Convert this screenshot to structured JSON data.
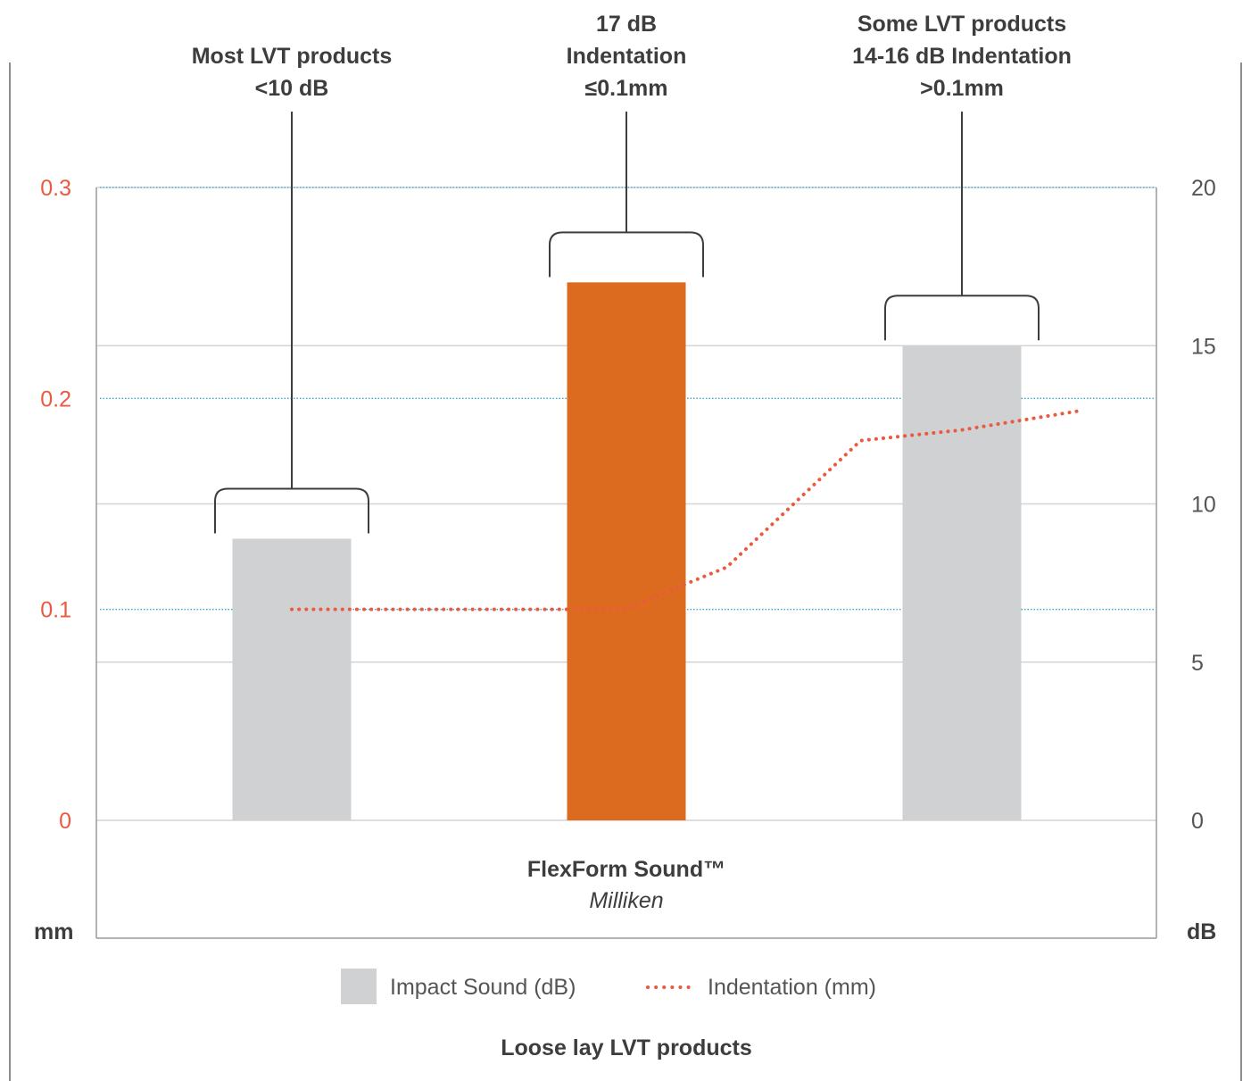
{
  "chart_data": {
    "type": "bar",
    "categories": [
      "",
      "FlexForm Sound™",
      ""
    ],
    "category_sub": [
      "",
      "Milliken",
      ""
    ],
    "series": [
      {
        "name": "Impact Sound (dB)",
        "values": [
          8.9,
          17,
          15
        ],
        "colors": [
          "#d0d1d2",
          "#dc6a1f",
          "#d0d1d2"
        ]
      },
      {
        "name": "Indentation (mm)",
        "type": "line",
        "style": "dotted",
        "color": "#ea5a3f",
        "x": [
          0,
          0.1,
          0.25,
          0.5,
          0.75,
          1.0,
          1.1,
          1.3,
          1.5,
          1.7,
          2.0,
          2.35
        ],
        "values": [
          0.1,
          0.1,
          0.1,
          0.1,
          0.1,
          0.1,
          0.107,
          0.12,
          0.15,
          0.18,
          0.185,
          0.194
        ]
      }
    ],
    "y_left": {
      "label": "mm",
      "ticks": [
        "0",
        "0.1",
        "0.2",
        "0.3"
      ],
      "lim": [
        0,
        0.3
      ],
      "color": "#ea5a3f"
    },
    "y_right": {
      "label": "dB",
      "ticks": [
        "0",
        "5",
        "10",
        "15",
        "20"
      ],
      "lim": [
        0,
        20
      ],
      "color": "#555555"
    },
    "annotations": [
      {
        "bar": 0,
        "lines": [
          "Most LVT products",
          "<10 dB"
        ]
      },
      {
        "bar": 1,
        "lines": [
          "17 dB",
          "Indentation",
          "≤0.1mm"
        ]
      },
      {
        "bar": 2,
        "lines": [
          "Some LVT products",
          "14-16 dB Indentation",
          ">0.1mm"
        ]
      }
    ],
    "legend": [
      {
        "label": "Impact Sound (dB)",
        "kind": "box",
        "color": "#d0d1d2"
      },
      {
        "label": "Indentation (mm)",
        "kind": "dots",
        "color": "#ea5a3f"
      }
    ],
    "xlabel": "Loose lay LVT products",
    "grid": true,
    "legend_position": "bottom"
  }
}
